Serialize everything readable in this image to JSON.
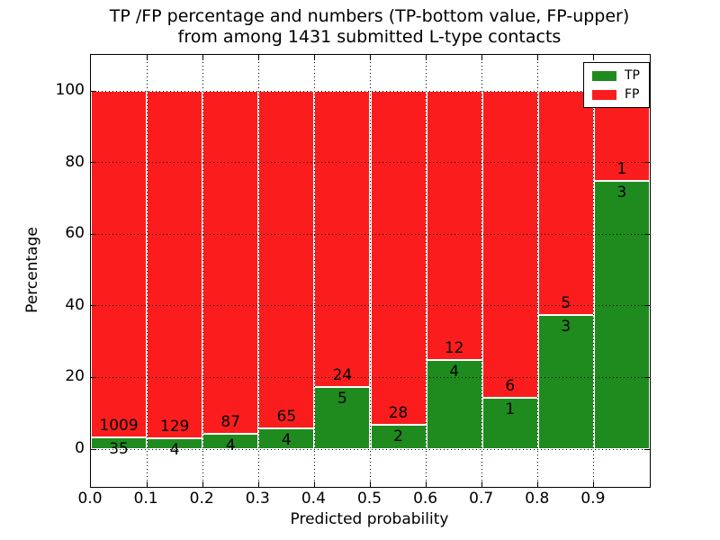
{
  "title": {
    "line1": "TP /FP percentage and numbers (TP-bottom value, FP-upper)",
    "line2": "from among 1431 submitted L-type contacts"
  },
  "legend": {
    "items": [
      {
        "label": "TP",
        "color": "#1f8b1f"
      },
      {
        "label": "FP",
        "color": "#fb1d1d"
      }
    ]
  },
  "colors": {
    "tp_green": "#1f8b1f",
    "fp_red": "#fb1d1d",
    "bar_edge": "#ffffff",
    "grid": "#000000",
    "background": "#ffffff",
    "text": "#000000"
  },
  "chart_data": {
    "type": "bar",
    "stacked": true,
    "title": "TP /FP percentage and numbers (TP-bottom value, FP-upper) from among 1431 submitted L-type contacts",
    "xlabel": "Predicted probability",
    "ylabel": "Percentage",
    "total_contacts": 1431,
    "bin_edges": [
      0.0,
      0.1,
      0.2,
      0.3,
      0.4,
      0.5,
      0.6,
      0.7,
      0.8,
      0.9,
      1.0
    ],
    "xtick_labels": [
      "0.0",
      "0.1",
      "0.2",
      "0.3",
      "0.4",
      "0.5",
      "0.6",
      "0.7",
      "0.8",
      "0.9"
    ],
    "ytick_values": [
      0,
      20,
      40,
      60,
      80,
      100
    ],
    "ylim": [
      -11,
      110
    ],
    "xlim": [
      0.0,
      1.0
    ],
    "grid": true,
    "legend_position": "upper right",
    "series": [
      {
        "name": "TP",
        "color": "#1f8b1f",
        "counts": [
          35,
          4,
          4,
          4,
          5,
          2,
          4,
          1,
          3,
          3
        ],
        "percent": [
          3.4,
          3.0,
          4.4,
          5.8,
          17.2,
          6.7,
          25.0,
          14.3,
          37.5,
          75.0
        ]
      },
      {
        "name": "FP",
        "color": "#fb1d1d",
        "counts": [
          1009,
          129,
          87,
          65,
          24,
          28,
          12,
          6,
          5,
          1
        ],
        "percent": [
          96.6,
          97.0,
          95.6,
          94.2,
          82.8,
          93.3,
          75.0,
          85.7,
          62.5,
          25.0
        ]
      }
    ]
  }
}
